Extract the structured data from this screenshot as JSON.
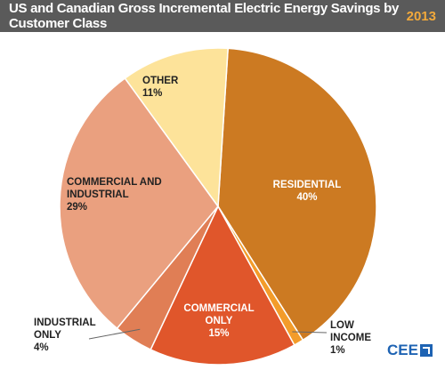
{
  "header": {
    "title": "US and Canadian Gross Incremental Electric Energy Savings by Customer Class",
    "year": "2013"
  },
  "chart_data": {
    "type": "pie",
    "slices": [
      {
        "label": [
          "RESIDENTIAL"
        ],
        "percent_label": "40%",
        "value": 40,
        "color": "#cc7a22",
        "text_color": "#ffffff"
      },
      {
        "label": [
          "LOW",
          "INCOME"
        ],
        "percent_label": "1%",
        "value": 1,
        "color": "#f39c2a",
        "text_color": "#222222"
      },
      {
        "label": [
          "COMMERCIAL",
          "ONLY"
        ],
        "percent_label": "15%",
        "value": 15,
        "color": "#e0562b",
        "text_color": "#ffffff"
      },
      {
        "label": [
          "INDUSTRIAL",
          "ONLY"
        ],
        "percent_label": "4%",
        "value": 4,
        "color": "#e07e55",
        "text_color": "#222222"
      },
      {
        "label": [
          "COMMERCIAL AND",
          "INDUSTRIAL"
        ],
        "percent_label": "29%",
        "value": 29,
        "color": "#eaa07f",
        "text_color": "#222222"
      },
      {
        "label": [
          "OTHER"
        ],
        "percent_label": "11%",
        "value": 11,
        "color": "#fde39a",
        "text_color": "#222222"
      }
    ]
  },
  "logo": {
    "text": "CEE"
  }
}
